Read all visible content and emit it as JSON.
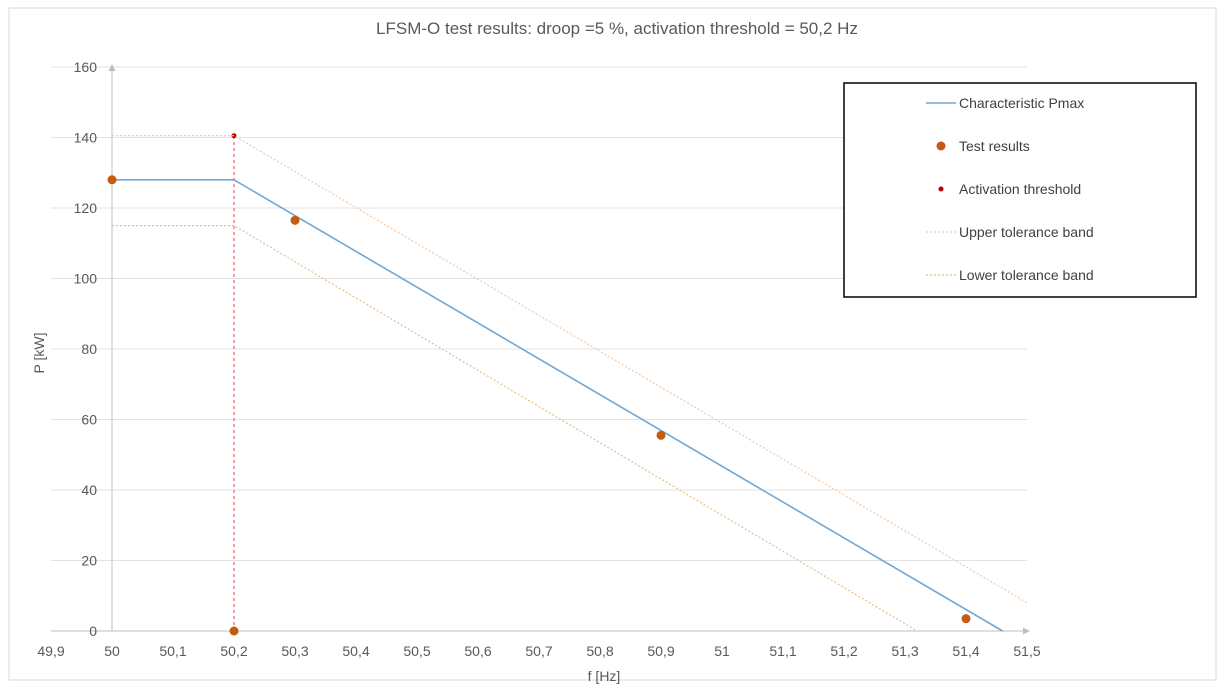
{
  "chart_data": {
    "type": "line",
    "title": "LFSM-O test results: droop =5 %, activation threshold = 50,2 Hz",
    "xlabel": "f [Hz]",
    "ylabel": "P [kW]",
    "xlim": [
      49.9,
      51.5
    ],
    "ylim": [
      0,
      160
    ],
    "x_ticks": [
      49.9,
      50.0,
      50.1,
      50.2,
      50.3,
      50.4,
      50.5,
      50.6,
      50.7,
      50.8,
      50.9,
      51.0,
      51.1,
      51.2,
      51.3,
      51.4,
      51.5
    ],
    "x_tick_labels": [
      "49,9",
      "50",
      "50,1",
      "50,2",
      "50,3",
      "50,4",
      "50,5",
      "50,6",
      "50,7",
      "50,8",
      "50,9",
      "51",
      "51,1",
      "51,2",
      "51,3",
      "51,4",
      "51,5"
    ],
    "y_ticks": [
      0,
      20,
      40,
      60,
      80,
      100,
      120,
      140,
      160
    ],
    "y_tick_labels": [
      "0",
      "20",
      "40",
      "60",
      "80",
      "100",
      "120",
      "140",
      "160"
    ],
    "grid": true,
    "legend_position": "top-right",
    "series": [
      {
        "name": "Characteristic Pmax",
        "kind": "line",
        "color": "#6fa8d6",
        "x": [
          50.0,
          50.2,
          51.46
        ],
        "y": [
          128,
          128,
          0
        ]
      },
      {
        "name": "Test results",
        "kind": "scatter",
        "color": "#c55a11",
        "x": [
          50.0,
          50.2,
          50.3,
          50.9,
          51.4
        ],
        "y": [
          128,
          0,
          116.5,
          55.5,
          3.5
        ]
      },
      {
        "name": "Activation threshold",
        "kind": "point",
        "color": "#c00000",
        "x": [
          50.2
        ],
        "y": [
          140.5
        ]
      },
      {
        "name": "Upper tolerance band",
        "kind": "dotted-line",
        "color": "#f2c9a8",
        "x": [
          50.0,
          50.2,
          51.5
        ],
        "y": [
          140.5,
          140.5,
          8
        ]
      },
      {
        "name": "Lower tolerance band",
        "kind": "dotted-line",
        "color": "#e3c08c",
        "x": [
          50.0,
          50.2,
          51.32
        ],
        "y": [
          115,
          115,
          0
        ]
      }
    ],
    "reference_lines": [
      {
        "kind": "vertical-dashed",
        "color": "#e06666",
        "x": 50.2,
        "y": [
          0,
          140.5
        ]
      }
    ]
  }
}
